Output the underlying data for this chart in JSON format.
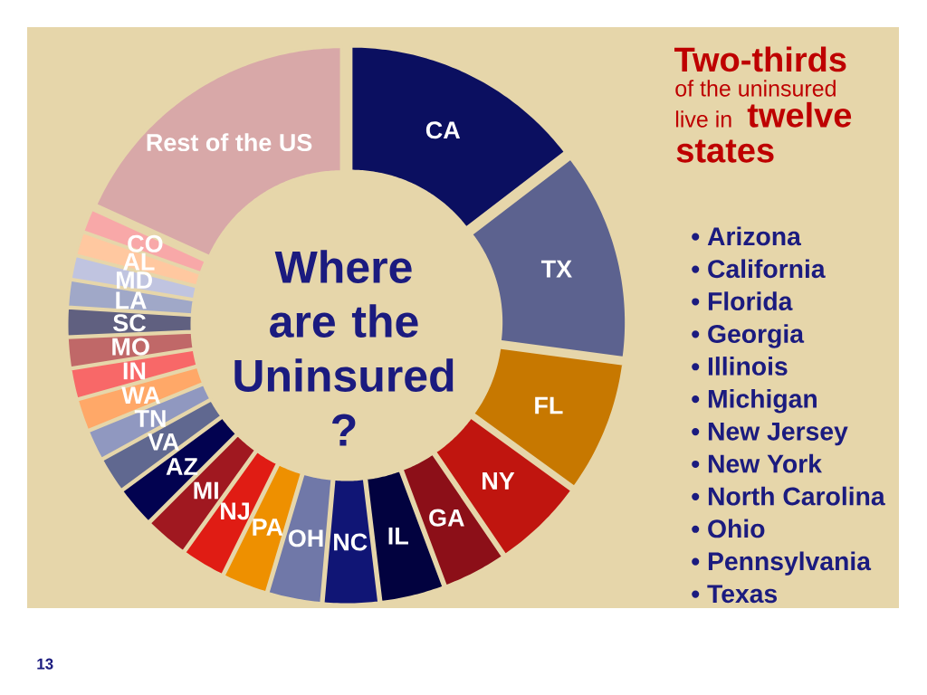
{
  "chart_data": {
    "type": "donut",
    "title": "Where are the Uninsured ?",
    "categories": [
      "CA",
      "TX",
      "FL",
      "NY",
      "GA",
      "IL",
      "NC",
      "OH",
      "PA",
      "NJ",
      "MI",
      "AZ",
      "VA",
      "TN",
      "WA",
      "IN",
      "MO",
      "SC",
      "LA",
      "MD",
      "AL",
      "CO",
      "Rest of the US"
    ],
    "values": [
      14.6,
      12.5,
      7.9,
      5.5,
      3.8,
      3.8,
      3.3,
      3.2,
      2.7,
      2.6,
      2.6,
      2.4,
      2.1,
      1.8,
      1.9,
      1.8,
      1.8,
      1.7,
      1.6,
      1.4,
      1.4,
      1.4,
      18.2
    ],
    "colors": [
      "#0B0F60",
      "#5C628F",
      "#C77800",
      "#C0150F",
      "#8C0F18",
      "#02023F",
      "#101575",
      "#7078A8",
      "#EE9000",
      "#E01C14",
      "#A01820",
      "#020250",
      "#606890",
      "#9098C0",
      "#FFA868",
      "#F86868",
      "#C06868",
      "#606080",
      "#A0A8C8",
      "#C0C4E0",
      "#FFC8A0",
      "#F8A8A8",
      "#D8A8A8"
    ],
    "annotations": [
      "Two-thirds",
      "of the uninsured",
      "live in",
      "twelve",
      "states",
      "• Arizona",
      "• California",
      "• Florida",
      "• Georgia",
      "• Illinois",
      "• Michigan",
      "• New Jersey",
      "• New York",
      "• North Carolina",
      "• Ohio",
      "• Pennsylvania",
      "• Texas",
      "13"
    ]
  }
}
